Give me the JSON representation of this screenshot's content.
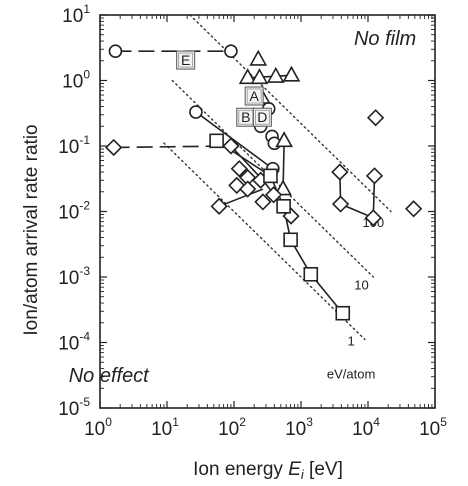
{
  "chart_data": {
    "type": "scatter",
    "xlabel_prefix": "Ion energy ",
    "xlabel_var": "E",
    "xlabel_sub": "i",
    "xlabel_suffix": " [eV]",
    "ylabel": "Ion/atom arrival rate ratio",
    "x_scale": "log",
    "y_scale": "log",
    "xlim": [
      1,
      100000
    ],
    "ylim": [
      1e-05,
      10
    ],
    "x_ticks": [
      {
        "value": 1,
        "base": "10",
        "exp": "0"
      },
      {
        "value": 10,
        "base": "10",
        "exp": "1"
      },
      {
        "value": 100,
        "base": "10",
        "exp": "2"
      },
      {
        "value": 1000,
        "base": "10",
        "exp": "3"
      },
      {
        "value": 10000,
        "base": "10",
        "exp": "4"
      },
      {
        "value": 100000,
        "base": "10",
        "exp": "5"
      }
    ],
    "y_ticks": [
      {
        "value": 10,
        "base": "10",
        "exp": "1"
      },
      {
        "value": 1,
        "base": "10",
        "exp": "0"
      },
      {
        "value": 0.1,
        "base": "10",
        "exp": "-1"
      },
      {
        "value": 0.01,
        "base": "10",
        "exp": "-2"
      },
      {
        "value": 0.001,
        "base": "10",
        "exp": "-3"
      },
      {
        "value": 0.0001,
        "base": "10",
        "exp": "-4"
      },
      {
        "value": 1e-05,
        "base": "10",
        "exp": "-5"
      }
    ],
    "region_labels": [
      {
        "text": "No film",
        "x": 18000,
        "y": 3.5
      },
      {
        "text": "No effect",
        "x": 1.35,
        "y": 2.5e-05
      }
    ],
    "energy_lines": [
      {
        "label": "100",
        "x": [
          22,
          22000
        ],
        "y": [
          10,
          0.01
        ],
        "label_x": 12000,
        "label_y": 0.0058
      },
      {
        "label": "10",
        "x": [
          12,
          12000
        ],
        "y": [
          1.0,
          0.001
        ],
        "label_x": 8000,
        "label_y": 0.00065
      },
      {
        "label": "1",
        "x": [
          9,
          9000
        ],
        "y": [
          0.111,
          0.000111
        ],
        "label_x": 5600,
        "label_y": 9e-05
      }
    ],
    "energy_unit_label": {
      "text": "eV/atom",
      "x": 5600,
      "y": 2.8e-05
    },
    "series": [
      {
        "marker": "circle",
        "points": [
          {
            "x": 1.7,
            "y": 2.8
          },
          {
            "x": 90,
            "y": 2.8
          },
          {
            "x": 27,
            "y": 0.33
          },
          {
            "x": 330,
            "y": 0.37
          },
          {
            "x": 250,
            "y": 0.2
          },
          {
            "x": 370,
            "y": 0.14
          },
          {
            "x": 400,
            "y": 0.11
          },
          {
            "x": 380,
            "y": 0.045
          }
        ],
        "lines": [
          {
            "x": [
              1.7,
              90
            ],
            "y": [
              2.8,
              2.8
            ],
            "dashed": true
          },
          {
            "x": [
              27,
              380
            ],
            "y": [
              0.33,
              0.045
            ],
            "dashed": false
          }
        ]
      },
      {
        "marker": "triangle",
        "points": [
          {
            "x": 230,
            "y": 2.1
          },
          {
            "x": 160,
            "y": 1.1
          },
          {
            "x": 240,
            "y": 1.1
          },
          {
            "x": 420,
            "y": 1.15
          },
          {
            "x": 720,
            "y": 1.2
          },
          {
            "x": 260,
            "y": 0.55
          },
          {
            "x": 560,
            "y": 0.12
          },
          {
            "x": 540,
            "y": 0.022
          }
        ],
        "lines": [
          {
            "x": [
              160,
              720
            ],
            "y": [
              1.1,
              1.2
            ],
            "dashed": false
          },
          {
            "x": [
              560,
              540
            ],
            "y": [
              0.12,
              0.022
            ],
            "dashed": false
          }
        ]
      },
      {
        "marker": "diamond",
        "points": [
          {
            "x": 1.6,
            "y": 0.095
          },
          {
            "x": 90,
            "y": 0.1
          },
          {
            "x": 120,
            "y": 0.045
          },
          {
            "x": 160,
            "y": 0.033
          },
          {
            "x": 110,
            "y": 0.025
          },
          {
            "x": 250,
            "y": 0.03
          },
          {
            "x": 160,
            "y": 0.022
          },
          {
            "x": 390,
            "y": 0.018
          },
          {
            "x": 270,
            "y": 0.014
          },
          {
            "x": 710,
            "y": 0.0085
          },
          {
            "x": 60,
            "y": 0.012
          },
          {
            "x": 3800,
            "y": 0.04
          },
          {
            "x": 3900,
            "y": 0.013
          },
          {
            "x": 12500,
            "y": 0.035
          },
          {
            "x": 12000,
            "y": 0.008
          },
          {
            "x": 13000,
            "y": 0.27
          },
          {
            "x": 48000,
            "y": 0.011
          }
        ],
        "lines": [
          {
            "x": [
              1.6,
              90
            ],
            "y": [
              0.095,
              0.1
            ],
            "dashed": true
          },
          {
            "x": [
              90,
              270,
              710
            ],
            "y": [
              0.1,
              0.03,
              0.0085
            ],
            "dashed": false
          },
          {
            "x": [
              60,
              270
            ],
            "y": [
              0.012,
              0.022
            ],
            "dashed": false
          },
          {
            "x": [
              3800,
              3900,
              12000,
              12500
            ],
            "y": [
              0.04,
              0.013,
              0.008,
              0.035
            ],
            "dashed": false
          }
        ]
      },
      {
        "marker": "square",
        "points": [
          {
            "x": 55,
            "y": 0.12
          },
          {
            "x": 350,
            "y": 0.035
          },
          {
            "x": 550,
            "y": 0.012
          },
          {
            "x": 700,
            "y": 0.0037
          },
          {
            "x": 1400,
            "y": 0.0011
          },
          {
            "x": 4200,
            "y": 0.00028
          }
        ],
        "lines": [
          {
            "x": [
              55,
              350,
              550,
              700,
              1400,
              4200
            ],
            "y": [
              0.12,
              0.035,
              0.012,
              0.0037,
              0.0011,
              0.00028
            ],
            "dashed": false
          }
        ]
      }
    ],
    "box_labels": [
      {
        "text": "E",
        "x": 19,
        "y": 2.05
      },
      {
        "text": "A",
        "x": 200,
        "y": 0.58
      },
      {
        "text": "B",
        "x": 150,
        "y": 0.275
      },
      {
        "text": "D",
        "x": 265,
        "y": 0.275
      }
    ],
    "box_connector": {
      "x": [
        210,
        225,
        240
      ],
      "y": [
        0.38,
        0.32,
        0.38
      ]
    }
  }
}
